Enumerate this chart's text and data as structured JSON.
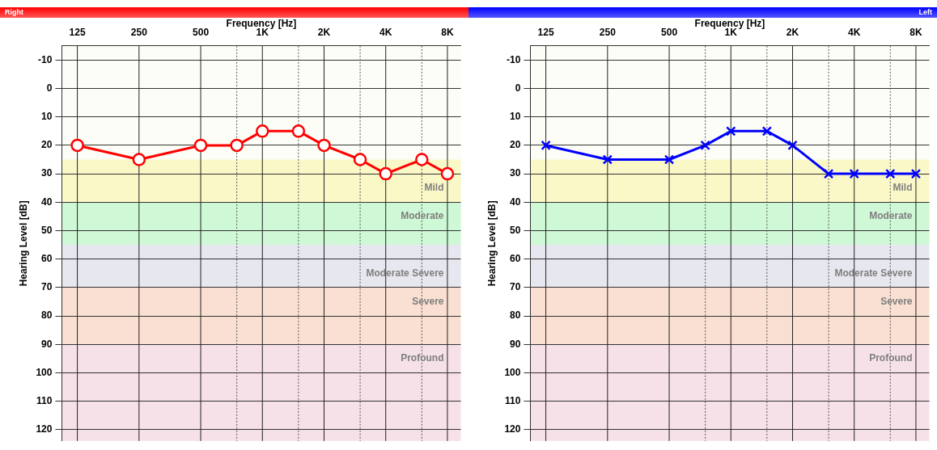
{
  "chart_data": [
    {
      "type": "line",
      "title": "Right",
      "xlabel": "Frequency [Hz]",
      "ylabel": "Hearing Level [dB]",
      "log": "x",
      "grid": true,
      "xlim": [
        105,
        9300
      ],
      "xticks": [
        125,
        250,
        500,
        {
          "value": 750,
          "label": null
        },
        {
          "value": 1000,
          "label": "1K"
        },
        {
          "value": 1500,
          "label": null
        },
        {
          "value": 2000,
          "label": "2K"
        },
        {
          "value": 3000,
          "label": null
        },
        {
          "value": 4000,
          "label": "4K"
        },
        {
          "value": 6000,
          "label": null
        },
        {
          "value": 8000,
          "label": "8K"
        }
      ],
      "ylim": [
        124,
        -15
      ],
      "yticks": [
        -10,
        0,
        10,
        20,
        30,
        40,
        50,
        60,
        70,
        80,
        90,
        100,
        110,
        120
      ],
      "x": [
        125,
        250,
        500,
        750,
        1000,
        1500,
        2000,
        3000,
        4000,
        6000,
        8000
      ],
      "series": [
        {
          "color": "#ff0000",
          "marker": "circle",
          "values": [
            20,
            25,
            20,
            20,
            15,
            15,
            20,
            25,
            30,
            25,
            30
          ]
        }
      ],
      "bands": [
        {
          "axis": "y",
          "from": 25,
          "to": 40,
          "label": "Mild",
          "color": "#fbf8c8"
        },
        {
          "axis": "y",
          "from": 40,
          "to": 55,
          "label": "Moderate",
          "color": "#cff8d6"
        },
        {
          "axis": "y",
          "from": 55,
          "to": 70,
          "label": "Moderate Severe",
          "color": "#e7e7ef"
        },
        {
          "axis": "y",
          "from": 70,
          "to": 90,
          "label": "Severe",
          "color": "#f9e0d2"
        },
        {
          "axis": "y",
          "from": 90,
          "to": 124,
          "label": "Profound",
          "color": "#f6e1e9"
        }
      ]
    },
    {
      "type": "line",
      "title": "Left",
      "xlabel": "Frequency [Hz]",
      "ylabel": "Hearing Level [dB]",
      "log": "x",
      "grid": true,
      "xlim": [
        105,
        9300
      ],
      "xticks": [
        125,
        250,
        500,
        {
          "value": 750,
          "label": null
        },
        {
          "value": 1000,
          "label": "1K"
        },
        {
          "value": 1500,
          "label": null
        },
        {
          "value": 2000,
          "label": "2K"
        },
        {
          "value": 3000,
          "label": null
        },
        {
          "value": 4000,
          "label": "4K"
        },
        {
          "value": 6000,
          "label": null
        },
        {
          "value": 8000,
          "label": "8K"
        }
      ],
      "ylim": [
        124,
        -15
      ],
      "yticks": [
        -10,
        0,
        10,
        20,
        30,
        40,
        50,
        60,
        70,
        80,
        90,
        100,
        110,
        120
      ],
      "x": [
        125,
        250,
        500,
        750,
        1000,
        1500,
        2000,
        3000,
        4000,
        6000,
        8000
      ],
      "series": [
        {
          "color": "#0000ff",
          "marker": "cross",
          "values": [
            20,
            25,
            25,
            20,
            15,
            15,
            20,
            30,
            30,
            30,
            30
          ]
        }
      ],
      "bands": [
        {
          "axis": "y",
          "from": 25,
          "to": 40,
          "label": "Mild",
          "color": "#fbf8c8"
        },
        {
          "axis": "y",
          "from": 40,
          "to": 55,
          "label": "Moderate",
          "color": "#cff8d6"
        },
        {
          "axis": "y",
          "from": 55,
          "to": 70,
          "label": "Moderate Severe",
          "color": "#e7e7ef"
        },
        {
          "axis": "y",
          "from": 70,
          "to": 90,
          "label": "Severe",
          "color": "#f9e0d2"
        },
        {
          "axis": "y",
          "from": 90,
          "to": 124,
          "label": "Profound",
          "color": "#f6e1e9"
        }
      ]
    }
  ]
}
